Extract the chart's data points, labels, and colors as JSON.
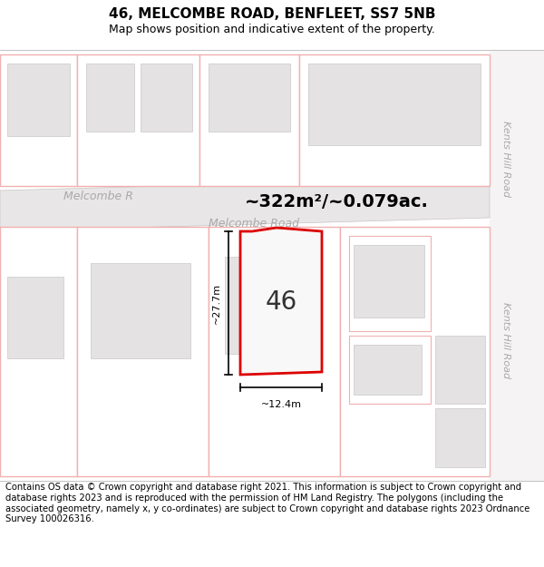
{
  "title": "46, MELCOMBE ROAD, BENFLEET, SS7 5NB",
  "subtitle": "Map shows position and indicative extent of the property.",
  "copyright": "Contains OS data © Crown copyright and database right 2021. This information is subject to Crown copyright and database rights 2023 and is reproduced with the permission of HM Land Registry. The polygons (including the associated geometry, namely x, y co-ordinates) are subject to Crown copyright and database rights 2023 Ordnance Survey 100026316.",
  "area_label": "~322m²/~0.079ac.",
  "dim_width": "~12.4m",
  "dim_height": "~27.7m",
  "house_number": "46",
  "road_label_diag1": "Melcombe R",
  "road_label_diag2": "Melcombe Road",
  "road_label_vert": "Kents Hill Road",
  "map_bg": "#ffffff",
  "road_fill": "#e8e6e6",
  "road_outline": "#c8c4c4",
  "parcel_fill": "#e8e6e6",
  "parcel_outline_pink": "#f0b0b0",
  "target_outline": "#dd0000",
  "target_fill": "#f8f8f8",
  "khr_strip_color": "#f0eeee",
  "title_fontsize": 11,
  "subtitle_fontsize": 9,
  "copyright_fontsize": 7.2
}
